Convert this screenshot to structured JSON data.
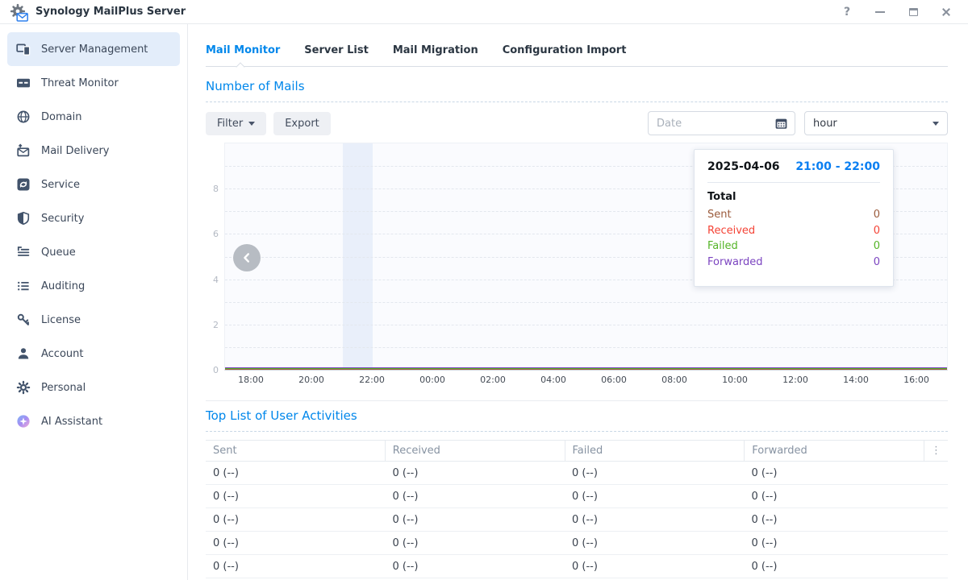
{
  "titlebar": {
    "title": "Synology MailPlus Server",
    "help_glyph": "?"
  },
  "sidebar": {
    "items": [
      {
        "label": "Server Management",
        "selected": true
      },
      {
        "label": "Threat Monitor"
      },
      {
        "label": "Domain"
      },
      {
        "label": "Mail Delivery"
      },
      {
        "label": "Service"
      },
      {
        "label": "Security"
      },
      {
        "label": "Queue"
      },
      {
        "label": "Auditing"
      },
      {
        "label": "License"
      },
      {
        "label": "Account"
      },
      {
        "label": "Personal"
      },
      {
        "label": "AI Assistant"
      }
    ]
  },
  "tabs": [
    {
      "label": "Mail Monitor",
      "active": true
    },
    {
      "label": "Server List"
    },
    {
      "label": "Mail Migration"
    },
    {
      "label": "Configuration Import"
    }
  ],
  "number_of_mails": {
    "title": "Number of Mails",
    "filter_label": "Filter",
    "export_label": "Export",
    "date_placeholder": "Date",
    "interval_value": "hour"
  },
  "chart_data": {
    "type": "line",
    "title": "Number of Mails",
    "x_ticks": [
      "18:00",
      "20:00",
      "22:00",
      "00:00",
      "02:00",
      "04:00",
      "06:00",
      "08:00",
      "10:00",
      "12:00",
      "14:00",
      "16:00"
    ],
    "y_ticks": [
      0,
      2,
      4,
      6,
      8
    ],
    "ylim": [
      0,
      10
    ],
    "grid": "dashed-horizontal",
    "legend_position": "none",
    "series": [
      {
        "name": "Sent",
        "color": "#9b5b3c",
        "values": [
          0,
          0,
          0,
          0,
          0,
          0,
          0,
          0,
          0,
          0,
          0,
          0,
          0,
          0,
          0,
          0,
          0,
          0,
          0,
          0,
          0,
          0,
          0,
          0
        ]
      },
      {
        "name": "Received",
        "color": "#f44336",
        "values": [
          0,
          0,
          0,
          0,
          0,
          0,
          0,
          0,
          0,
          0,
          0,
          0,
          0,
          0,
          0,
          0,
          0,
          0,
          0,
          0,
          0,
          0,
          0,
          0
        ]
      },
      {
        "name": "Failed",
        "color": "#54b427",
        "values": [
          0,
          0,
          0,
          0,
          0,
          0,
          0,
          0,
          0,
          0,
          0,
          0,
          0,
          0,
          0,
          0,
          0,
          0,
          0,
          0,
          0,
          0,
          0,
          0
        ]
      },
      {
        "name": "Forwarded",
        "color": "#7b44c0",
        "values": [
          0,
          0,
          0,
          0,
          0,
          0,
          0,
          0,
          0,
          0,
          0,
          0,
          0,
          0,
          0,
          0,
          0,
          0,
          0,
          0,
          0,
          0,
          0,
          0
        ]
      }
    ],
    "highlight": {
      "range": "21:00 - 22:00",
      "hours_after_first_tick": 3,
      "duration_hours": 1
    }
  },
  "tooltip": {
    "date": "2025-04-06",
    "time_range": "21:00 - 22:00",
    "total_label": "Total",
    "rows": [
      {
        "label": "Sent",
        "value": "0",
        "color": "#9b5b3c"
      },
      {
        "label": "Received",
        "value": "0",
        "color": "#f44336"
      },
      {
        "label": "Failed",
        "value": "0",
        "color": "#54b427"
      },
      {
        "label": "Forwarded",
        "value": "0",
        "color": "#7b44c0"
      }
    ]
  },
  "top_list": {
    "title": "Top List of User Activities",
    "columns": [
      "Sent",
      "Received",
      "Failed",
      "Forwarded"
    ],
    "menu_glyph": "⋮",
    "rows": [
      [
        "0 (--)",
        "0 (--)",
        "0 (--)",
        "0 (--)"
      ],
      [
        "0 (--)",
        "0 (--)",
        "0 (--)",
        "0 (--)"
      ],
      [
        "0 (--)",
        "0 (--)",
        "0 (--)",
        "0 (--)"
      ],
      [
        "0 (--)",
        "0 (--)",
        "0 (--)",
        "0 (--)"
      ],
      [
        "0 (--)",
        "0 (--)",
        "0 (--)",
        "0 (--)"
      ]
    ]
  }
}
